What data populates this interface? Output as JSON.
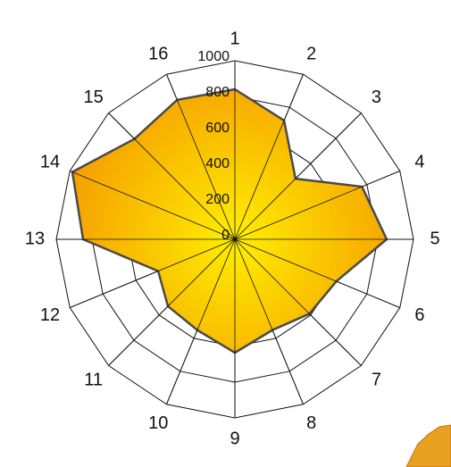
{
  "chart_data": {
    "type": "radar",
    "categories": [
      "1",
      "2",
      "3",
      "4",
      "5",
      "6",
      "7",
      "8",
      "9",
      "10",
      "11",
      "12",
      "13",
      "14",
      "15",
      "16"
    ],
    "values": [
      840,
      720,
      480,
      770,
      850,
      615,
      590,
      550,
      635,
      550,
      530,
      465,
      850,
      985,
      795,
      845
    ],
    "ylim": [
      0,
      1000
    ],
    "yticks": [
      0,
      200,
      400,
      600,
      800,
      1000
    ],
    "color": "#f5a800",
    "grid": true
  }
}
